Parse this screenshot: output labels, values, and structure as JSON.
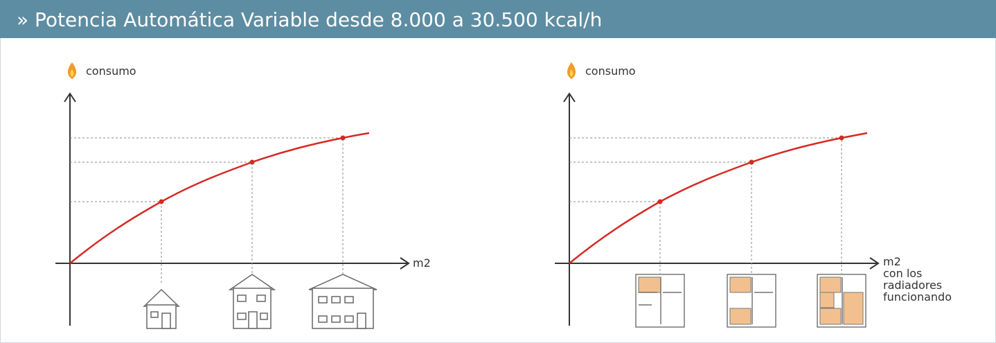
{
  "header": {
    "title": "» Potencia Automática Variable desde 8.000 a 30.500 kcal/h"
  },
  "panels": [
    {
      "y_label": "consumo",
      "x_label": [
        "m2"
      ]
    },
    {
      "y_label": "consumo",
      "x_label": [
        "m2",
        "con los",
        "radiadores",
        "funcionando"
      ]
    }
  ]
}
